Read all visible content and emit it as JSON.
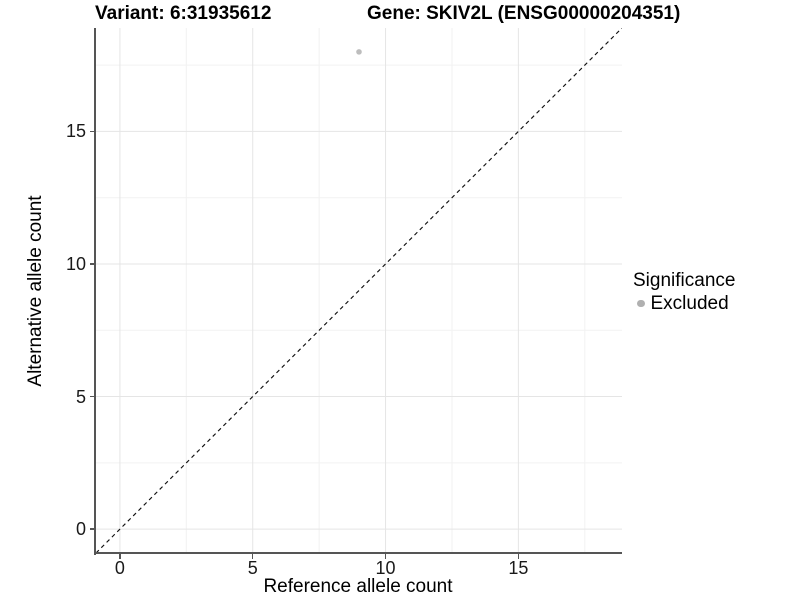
{
  "header": {
    "variant_title": "Variant: 6:31935612",
    "gene_title": "Gene: SKIV2L (ENSG00000204351)"
  },
  "chart_data": {
    "type": "scatter",
    "xlabel": "Reference allele count",
    "ylabel": "Alternative allele count",
    "xlim": [
      -0.9,
      18.9
    ],
    "ylim": [
      -0.9,
      18.9
    ],
    "x_ticks": [
      0,
      5,
      10,
      15
    ],
    "y_ticks": [
      0,
      5,
      10,
      15
    ],
    "minor_gridlines": [
      2.5,
      7.5,
      12.5,
      17.5
    ],
    "grid": true,
    "reference_line": {
      "type": "identity y=x",
      "style": "dashed",
      "color": "#111111"
    },
    "series": [
      {
        "name": "Excluded",
        "color": "#bdbdbd",
        "points": [
          {
            "x": 9,
            "y": 18
          }
        ]
      }
    ],
    "legend": {
      "title": "Significance",
      "position": "right",
      "items": [
        {
          "label": "Excluded",
          "color": "#b0b0b0"
        }
      ]
    }
  },
  "style_colors": {
    "background": "#ffffff",
    "axis_line": "#555555",
    "major_grid": "#e5e5e5",
    "minor_grid": "#f2f2f2",
    "tick_text": "#1a1a1a"
  }
}
